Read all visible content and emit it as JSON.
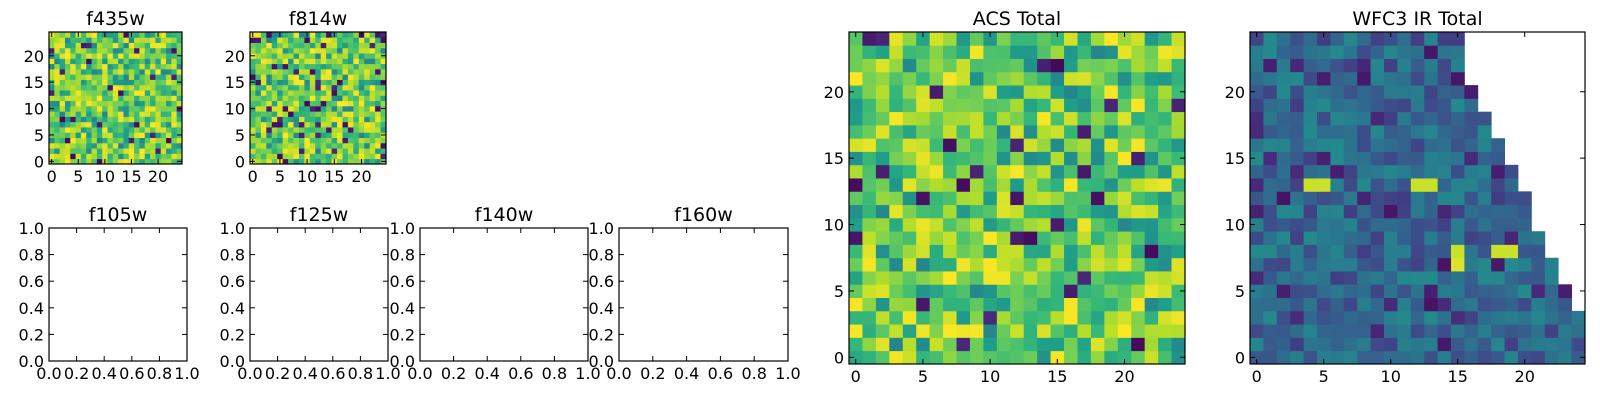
{
  "chart_data": [
    {
      "type": "heatmap",
      "title": "f435w",
      "xlabel": "",
      "ylabel": "",
      "xticks": [
        "0",
        "5",
        "10",
        "15",
        "20"
      ],
      "yticks": [
        "0",
        "5",
        "10",
        "15",
        "20"
      ],
      "xlim": [
        -0.5,
        24.5
      ],
      "ylim": [
        -0.5,
        24.5
      ],
      "grid_size": [
        25,
        25
      ],
      "colormap": "viridis",
      "mask": "none",
      "values_note": "25x25 grid of pixel intensities, mostly high (yellow-green) with scattered low (dark) cells"
    },
    {
      "type": "heatmap",
      "title": "f814w",
      "xlabel": "",
      "ylabel": "",
      "xticks": [
        "0",
        "5",
        "10",
        "15",
        "20"
      ],
      "yticks": [
        "0",
        "5",
        "10",
        "15",
        "20"
      ],
      "xlim": [
        -0.5,
        24.5
      ],
      "ylim": [
        -0.5,
        24.5
      ],
      "grid_size": [
        25,
        25
      ],
      "colormap": "viridis",
      "mask": "none",
      "values_note": "25x25 grid of pixel intensities, mostly high (yellow-green) with scattered low (dark) cells"
    },
    {
      "type": "scatter",
      "title": "f105w",
      "xlabel": "",
      "ylabel": "",
      "xticks": [
        "0.0",
        "0.2",
        "0.4",
        "0.6",
        "0.8",
        "1.0"
      ],
      "yticks": [
        "0.0",
        "0.2",
        "0.4",
        "0.6",
        "0.8",
        "1.0"
      ],
      "xlim": [
        0,
        1
      ],
      "ylim": [
        0,
        1
      ],
      "series": []
    },
    {
      "type": "scatter",
      "title": "f125w",
      "xlabel": "",
      "ylabel": "",
      "xticks": [
        "0.0",
        "0.2",
        "0.4",
        "0.6",
        "0.8",
        "1.0"
      ],
      "yticks": [
        "0.0",
        "0.2",
        "0.4",
        "0.6",
        "0.8",
        "1.0"
      ],
      "xlim": [
        0,
        1
      ],
      "ylim": [
        0,
        1
      ],
      "series": []
    },
    {
      "type": "scatter",
      "title": "f140w",
      "xlabel": "",
      "ylabel": "",
      "xticks": [
        "0.0",
        "0.2",
        "0.4",
        "0.6",
        "0.8",
        "1.0"
      ],
      "yticks": [
        "0.0",
        "0.2",
        "0.4",
        "0.6",
        "0.8",
        "1.0"
      ],
      "xlim": [
        0,
        1
      ],
      "ylim": [
        0,
        1
      ],
      "series": []
    },
    {
      "type": "scatter",
      "title": "f160w",
      "xlabel": "",
      "ylabel": "",
      "xticks": [
        "0.0",
        "0.2",
        "0.4",
        "0.6",
        "0.8",
        "1.0"
      ],
      "yticks": [
        "0.0",
        "0.2",
        "0.4",
        "0.6",
        "0.8",
        "1.0"
      ],
      "xlim": [
        0,
        1
      ],
      "ylim": [
        0,
        1
      ],
      "series": []
    },
    {
      "type": "heatmap",
      "title": "ACS Total",
      "xlabel": "",
      "ylabel": "",
      "xticks": [
        "0",
        "5",
        "10",
        "15",
        "20"
      ],
      "yticks": [
        "0",
        "5",
        "10",
        "15",
        "20"
      ],
      "xlim": [
        -0.5,
        24.5
      ],
      "ylim": [
        -0.5,
        24.5
      ],
      "grid_size": [
        25,
        25
      ],
      "colormap": "viridis",
      "mask": "none",
      "values_note": "25x25 grid of summed intensities, mostly green-yellow with a few dark cells"
    },
    {
      "type": "heatmap",
      "title": "WFC3 IR Total",
      "xlabel": "",
      "ylabel": "",
      "xticks": [
        "0",
        "5",
        "10",
        "15",
        "20"
      ],
      "yticks": [
        "0",
        "5",
        "10",
        "15",
        "20"
      ],
      "xlim": [
        -0.5,
        24.5
      ],
      "ylim": [
        -0.5,
        24.5
      ],
      "grid_size": [
        25,
        25
      ],
      "colormap": "viridis",
      "mask": "upper-right triangle empty (white) beyond diagonal edge",
      "values_note": "25x25 grid of summed intensities, mostly dark teal-blue with a few bright yellow cells near (4,13),(12,13),(15,8)"
    }
  ]
}
